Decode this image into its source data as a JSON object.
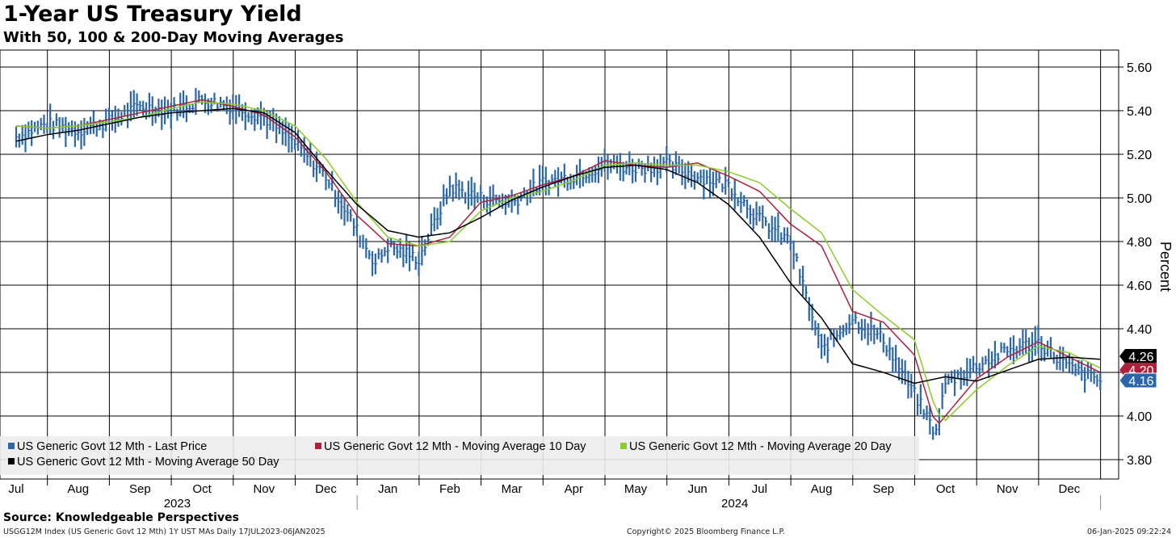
{
  "title": "1-Year US Treasury Yield",
  "subtitle": "With 50, 100 & 200-Day Moving Averages",
  "source": "Source: Knowledgeable Perspectives",
  "footer_left": "USGG12M Index (US Generic Govt 12 Mth) 1Y UST MAs  Daily 17JUL2023-06JAN2025",
  "footer_mid": "Copyright© 2025 Bloomberg Finance L.P.",
  "footer_right": "06-Jan-2025 09:22:24",
  "colors": {
    "price": "#2a66a8",
    "ma10": "#b0203a",
    "ma20": "#8ccc2a",
    "ma50": "#000000",
    "grid": "#000000"
  },
  "chart_data": {
    "type": "line",
    "ylabel": "Percent",
    "ylim": [
      3.7,
      5.66
    ],
    "y_ticks": [
      "5.60",
      "5.40",
      "5.20",
      "5.00",
      "4.80",
      "4.60",
      "4.40",
      "4.20",
      "4.00",
      "3.80"
    ],
    "grid": true,
    "legend_position": "bottom-left",
    "months": [
      "Jul",
      "Aug",
      "Sep",
      "Oct",
      "Nov",
      "Dec",
      "Jan",
      "Feb",
      "Mar",
      "Apr",
      "May",
      "Jun",
      "Jul",
      "Aug",
      "Sep",
      "Oct",
      "Nov",
      "Dec"
    ],
    "years": [
      "2023",
      "2024"
    ],
    "last_values": [
      {
        "series": "ma50",
        "label": "4.26"
      },
      {
        "series": "ma10",
        "label": "4.20"
      },
      {
        "series": "price",
        "label": "4.16"
      }
    ],
    "series": [
      {
        "key": "price",
        "name": "US Generic Govt 12 Mth - Last Price",
        "style": "bars",
        "x": [
          0,
          0.5,
          1,
          1.5,
          2,
          2.5,
          3,
          3.5,
          4,
          4.5,
          5,
          5.5,
          5.8,
          6,
          6.5,
          7,
          7.5,
          8,
          8.5,
          9,
          9.5,
          10,
          10.5,
          11,
          11.5,
          12,
          12.5,
          13,
          13.5,
          14,
          14.5,
          14.85,
          15,
          15.5,
          16,
          16.5,
          17,
          17.5
        ],
        "y": [
          5.28,
          5.34,
          5.31,
          5.35,
          5.42,
          5.4,
          5.45,
          5.42,
          5.37,
          5.25,
          5.1,
          4.85,
          4.7,
          4.78,
          4.72,
          5.05,
          5.0,
          4.98,
          5.07,
          5.1,
          5.15,
          5.14,
          5.15,
          5.1,
          5.06,
          4.9,
          4.8,
          4.3,
          4.45,
          4.35,
          4.1,
          3.92,
          4.15,
          4.23,
          4.3,
          4.34,
          4.22,
          4.16
        ]
      },
      {
        "key": "ma10",
        "name": "US Generic Govt 12 Mth - Moving Average 10 Day",
        "style": "line",
        "x": [
          0,
          0.5,
          1,
          1.5,
          2,
          2.5,
          3,
          3.5,
          4,
          4.5,
          5,
          5.5,
          6,
          6.5,
          7,
          7.5,
          8,
          8.5,
          9,
          9.5,
          10,
          10.5,
          11,
          11.5,
          12,
          12.5,
          13,
          13.5,
          14,
          14.5,
          14.85,
          15,
          15.5,
          16,
          16.5,
          17,
          17.5
        ],
        "y": [
          5.33,
          5.32,
          5.33,
          5.36,
          5.39,
          5.42,
          5.45,
          5.42,
          5.38,
          5.28,
          5.12,
          4.92,
          4.79,
          4.78,
          4.82,
          4.98,
          5.01,
          5.06,
          5.1,
          5.17,
          5.15,
          5.14,
          5.16,
          5.1,
          5.03,
          4.88,
          4.78,
          4.48,
          4.43,
          4.28,
          3.95,
          4.0,
          4.17,
          4.27,
          4.34,
          4.27,
          4.2
        ]
      },
      {
        "key": "ma20",
        "name": "US Generic Govt 12 Mth - Moving Average 20 Day",
        "style": "line",
        "x": [
          0,
          0.5,
          1,
          1.5,
          2,
          2.5,
          3,
          3.5,
          4,
          4.5,
          5,
          5.5,
          6,
          6.5,
          7,
          7.5,
          8,
          8.5,
          9,
          9.5,
          10,
          10.5,
          11,
          11.5,
          12,
          12.5,
          13,
          13.5,
          14,
          14.5,
          14.85,
          15,
          15.5,
          16,
          16.5,
          17,
          17.5
        ],
        "y": [
          5.33,
          5.32,
          5.33,
          5.35,
          5.37,
          5.41,
          5.44,
          5.43,
          5.4,
          5.33,
          5.18,
          4.98,
          4.82,
          4.78,
          4.8,
          4.94,
          5.0,
          5.03,
          5.08,
          5.15,
          5.16,
          5.15,
          5.15,
          5.12,
          5.07,
          4.95,
          4.84,
          4.58,
          4.46,
          4.35,
          4.02,
          3.98,
          4.12,
          4.23,
          4.32,
          4.29,
          4.22
        ]
      },
      {
        "key": "ma50",
        "name": "US Generic Govt 12 Mth - Moving Average 50 Day",
        "style": "line",
        "x": [
          0,
          0.5,
          1,
          1.5,
          2,
          2.5,
          3,
          3.5,
          4,
          4.5,
          5,
          5.5,
          6,
          6.5,
          7,
          7.5,
          8,
          8.5,
          9,
          9.5,
          10,
          10.5,
          11,
          11.5,
          12,
          12.5,
          13,
          13.5,
          14,
          14.5,
          15,
          15.5,
          16,
          16.5,
          17,
          17.5
        ],
        "y": [
          5.26,
          5.29,
          5.31,
          5.34,
          5.37,
          5.39,
          5.4,
          5.41,
          5.39,
          5.3,
          5.13,
          4.97,
          4.85,
          4.82,
          4.84,
          4.91,
          4.99,
          5.05,
          5.1,
          5.14,
          5.15,
          5.13,
          5.07,
          4.97,
          4.82,
          4.61,
          4.45,
          4.24,
          4.2,
          4.15,
          4.18,
          4.16,
          4.21,
          4.26,
          4.27,
          4.26
        ]
      }
    ]
  }
}
